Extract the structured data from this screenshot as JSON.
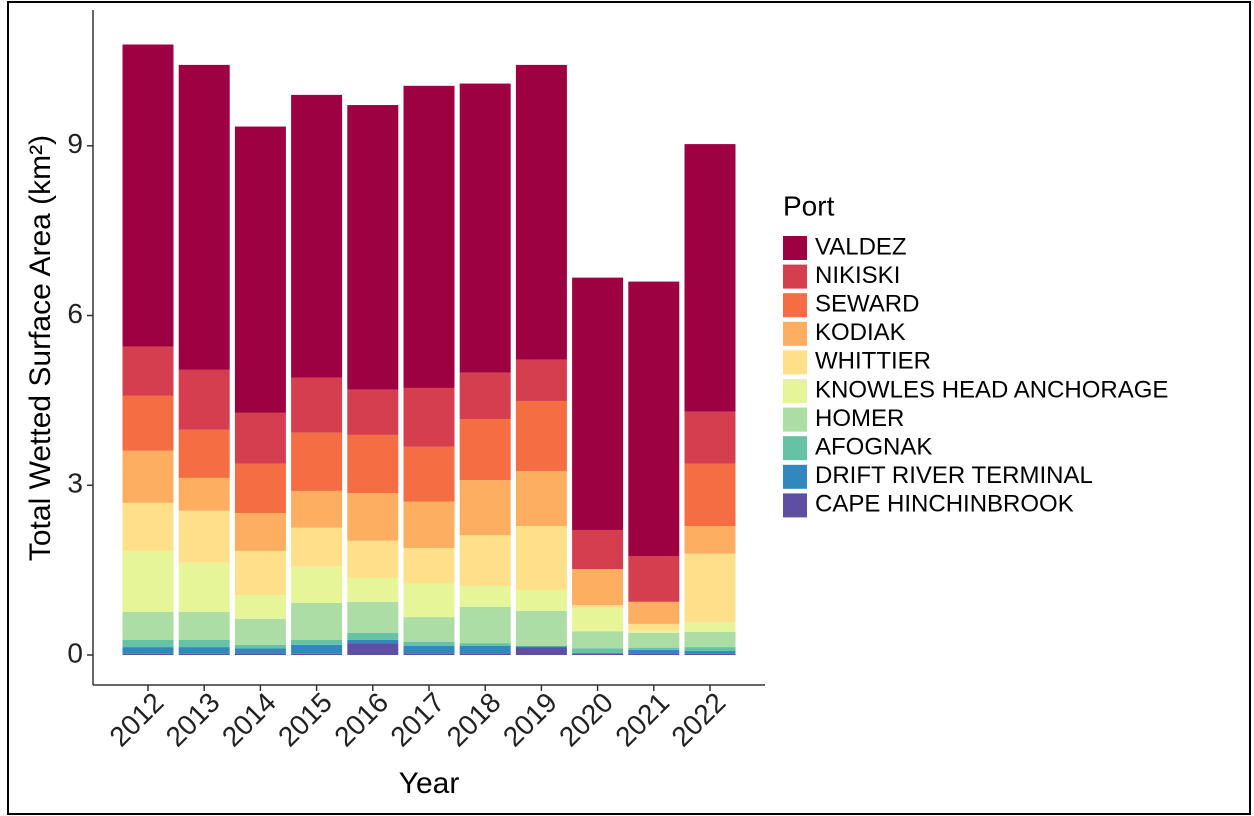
{
  "chart_data": {
    "type": "stacked-bar",
    "x_label": "Year",
    "y_label": "Total Wetted Surface Area (km²)",
    "legend_title": "Port",
    "legend_position": "right",
    "categories": [
      "2012",
      "2013",
      "2014",
      "2015",
      "2016",
      "2017",
      "2018",
      "2019",
      "2020",
      "2021",
      "2022"
    ],
    "ylim": [
      -0.53,
      11.4
    ],
    "yticks": [
      0,
      3,
      6,
      9
    ],
    "series": [
      {
        "name": "VALDEZ",
        "color": "#9E0142",
        "values": [
          5.34,
          5.39,
          5.06,
          5.0,
          5.03,
          5.34,
          5.11,
          5.21,
          4.46,
          4.85,
          4.73
        ]
      },
      {
        "name": "NIKISKI",
        "color": "#D53E4F",
        "values": [
          0.87,
          1.06,
          0.9,
          0.97,
          0.8,
          1.04,
          0.82,
          0.73,
          0.69,
          0.81,
          0.92
        ]
      },
      {
        "name": "SEWARD",
        "color": "#F46D43",
        "values": [
          0.97,
          0.85,
          0.87,
          1.03,
          1.03,
          0.97,
          1.08,
          1.24,
          0,
          0,
          1.1
        ]
      },
      {
        "name": "KODIAK",
        "color": "#FDAE61",
        "values": [
          0.92,
          0.58,
          0.67,
          0.65,
          0.84,
          0.82,
          0.97,
          0.97,
          0.64,
          0.39,
          0.49
        ]
      },
      {
        "name": "WHITTIER",
        "color": "#FEE08B",
        "values": [
          0.85,
          0.92,
          0.78,
          0.69,
          0.66,
          0.63,
          0.9,
          1.13,
          0.05,
          0.11,
          1.22
        ]
      },
      {
        "name": "KNOWLES HEAD ANCHORAGE",
        "color": "#E6F598",
        "values": [
          1.08,
          0.87,
          0.42,
          0.64,
          0.42,
          0.59,
          0.37,
          0.37,
          0.41,
          0.05,
          0.16
        ]
      },
      {
        "name": "HOMER",
        "color": "#ABDDA4",
        "values": [
          0.49,
          0.49,
          0.46,
          0.65,
          0.55,
          0.44,
          0.64,
          0.62,
          0.3,
          0.26,
          0.27
        ]
      },
      {
        "name": "AFOGNAK",
        "color": "#66C2A5",
        "values": [
          0.13,
          0.13,
          0.06,
          0.09,
          0.12,
          0.07,
          0.05,
          0.01,
          0.08,
          0.04,
          0.07
        ]
      },
      {
        "name": "DRIFT RIVER TERMINAL",
        "color": "#3288BD",
        "values": [
          0.12,
          0.12,
          0.09,
          0.16,
          0.06,
          0.13,
          0.13,
          0.01,
          0.02,
          0.06,
          0.05
        ]
      },
      {
        "name": "CAPE HINCHINBROOK",
        "color": "#5E4FA2",
        "values": [
          0.02,
          0.02,
          0.03,
          0.02,
          0.21,
          0.03,
          0.03,
          0.14,
          0.02,
          0.03,
          0.02
        ]
      }
    ]
  }
}
